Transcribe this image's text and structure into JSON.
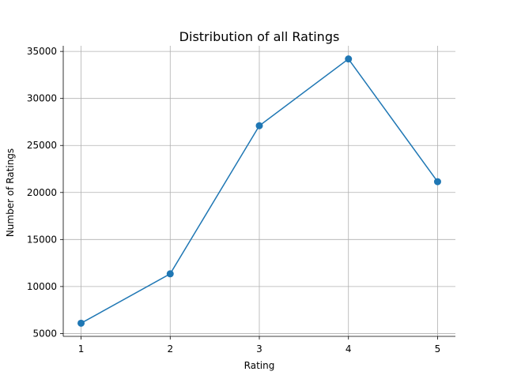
{
  "chart_data": {
    "type": "line",
    "title": "Distribution of all Ratings",
    "xlabel": "Rating",
    "ylabel": "Number of Ratings",
    "x": [
      1,
      2,
      3,
      4,
      5
    ],
    "series": [
      {
        "values": [
          6100,
          11350,
          27100,
          34200,
          21150
        ]
      }
    ],
    "xticks": [
      "1",
      "2",
      "3",
      "4",
      "5"
    ],
    "yticks": [
      5000,
      10000,
      15000,
      20000,
      25000,
      30000,
      35000
    ],
    "xlim": [
      0.8,
      5.2
    ],
    "ylim": [
      4700,
      35600
    ],
    "grid": true,
    "marker": "circle",
    "colors": {
      "series": "#1f77b4",
      "grid": "#b0b0b0"
    }
  }
}
